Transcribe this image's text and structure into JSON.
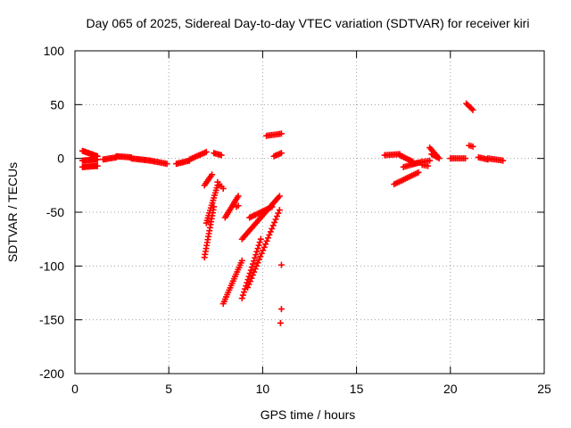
{
  "chart_data": {
    "type": "scatter",
    "title": "Day 065 of 2025, Sidereal Day-to-day VTEC variation (SDTVAR) for receiver kiri",
    "xlabel": "GPS time / hours",
    "ylabel": "SDTVAR / TECUs",
    "xlim": [
      0,
      25
    ],
    "ylim": [
      -200,
      100
    ],
    "xticks": [
      0,
      5,
      10,
      15,
      20,
      25
    ],
    "yticks": [
      -200,
      -150,
      -100,
      -50,
      0,
      50,
      100
    ],
    "xtick_labels": [
      "0",
      "5",
      "10",
      "15",
      "20",
      "25"
    ],
    "ytick_labels": [
      "-200",
      "-150",
      "-100",
      "-50",
      "0",
      "50",
      "100"
    ],
    "grid": true,
    "marker": "+",
    "point_color": "#ff0000",
    "segments": [
      {
        "x": [
          0.4,
          1.2
        ],
        "y": [
          7,
          2
        ],
        "n": 14
      },
      {
        "x": [
          0.4,
          1.2
        ],
        "y": [
          -2,
          -1
        ],
        "n": 14
      },
      {
        "x": [
          0.4,
          1.2
        ],
        "y": [
          -8,
          -7
        ],
        "n": 14
      },
      {
        "x": [
          1.5,
          2.2
        ],
        "y": [
          -1,
          1
        ],
        "n": 10
      },
      {
        "x": [
          2.2,
          3.0
        ],
        "y": [
          2,
          1
        ],
        "n": 12
      },
      {
        "x": [
          3.0,
          4.0
        ],
        "y": [
          0,
          -2
        ],
        "n": 14
      },
      {
        "x": [
          4.0,
          4.9
        ],
        "y": [
          -2,
          -5
        ],
        "n": 12
      },
      {
        "x": [
          5.4,
          6.1
        ],
        "y": [
          -5,
          -2
        ],
        "n": 10
      },
      {
        "x": [
          6.1,
          7.0
        ],
        "y": [
          -1,
          6
        ],
        "n": 12
      },
      {
        "x": [
          7.4,
          7.8
        ],
        "y": [
          5,
          3
        ],
        "n": 6
      },
      {
        "x": [
          6.9,
          7.3
        ],
        "y": [
          -25,
          -15
        ],
        "n": 7
      },
      {
        "x": [
          6.9,
          7.4
        ],
        "y": [
          -92,
          -45
        ],
        "n": 18
      },
      {
        "x": [
          7.0,
          7.6
        ],
        "y": [
          -60,
          -25
        ],
        "n": 16
      },
      {
        "x": [
          7.6,
          7.9
        ],
        "y": [
          -22,
          -28
        ],
        "n": 4
      },
      {
        "x": [
          8.0,
          8.7
        ],
        "y": [
          -55,
          -35
        ],
        "n": 14
      },
      {
        "x": [
          8.6,
          8.7
        ],
        "y": [
          -45,
          -44
        ],
        "n": 2
      },
      {
        "x": [
          7.9,
          8.9
        ],
        "y": [
          -135,
          -95
        ],
        "n": 20
      },
      {
        "x": [
          8.9,
          9.9
        ],
        "y": [
          -130,
          -75
        ],
        "n": 20
      },
      {
        "x": [
          8.9,
          10.9
        ],
        "y": [
          -75,
          -35
        ],
        "n": 28
      },
      {
        "x": [
          9.3,
          10.5
        ],
        "y": [
          -55,
          -45
        ],
        "n": 16
      },
      {
        "x": [
          9.2,
          10.9
        ],
        "y": [
          -120,
          -48
        ],
        "n": 26
      },
      {
        "x": [
          10.2,
          11.0
        ],
        "y": [
          21,
          23
        ],
        "n": 10
      },
      {
        "x": [
          10.6,
          11.0
        ],
        "y": [
          2,
          5
        ],
        "n": 6
      },
      {
        "x": [
          11.0,
          11.0
        ],
        "y": [
          -99,
          -99
        ],
        "n": 1
      },
      {
        "x": [
          11.0,
          11.0
        ],
        "y": [
          -140,
          -140
        ],
        "n": 1
      },
      {
        "x": [
          10.95,
          10.95
        ],
        "y": [
          -153,
          -153
        ],
        "n": 1
      },
      {
        "x": [
          16.5,
          17.3
        ],
        "y": [
          3,
          4
        ],
        "n": 10
      },
      {
        "x": [
          17.3,
          18.0
        ],
        "y": [
          3,
          -3
        ],
        "n": 10
      },
      {
        "x": [
          17.0,
          18.3
        ],
        "y": [
          -24,
          -13
        ],
        "n": 16
      },
      {
        "x": [
          17.5,
          18.5
        ],
        "y": [
          -8,
          -3
        ],
        "n": 12
      },
      {
        "x": [
          18.0,
          18.9
        ],
        "y": [
          -5,
          -2
        ],
        "n": 10
      },
      {
        "x": [
          18.9,
          19.4
        ],
        "y": [
          10,
          0
        ],
        "n": 8
      },
      {
        "x": [
          19.0,
          19.3
        ],
        "y": [
          4,
          1
        ],
        "n": 5
      },
      {
        "x": [
          18.5,
          18.8
        ],
        "y": [
          -6,
          -7
        ],
        "n": 4
      },
      {
        "x": [
          20.0,
          20.8
        ],
        "y": [
          0,
          0
        ],
        "n": 10
      },
      {
        "x": [
          20.85,
          21.2
        ],
        "y": [
          51,
          45
        ],
        "n": 6
      },
      {
        "x": [
          21.0,
          21.2
        ],
        "y": [
          12,
          11
        ],
        "n": 3
      },
      {
        "x": [
          21.5,
          22.0
        ],
        "y": [
          1,
          -1
        ],
        "n": 7
      },
      {
        "x": [
          22.0,
          22.8
        ],
        "y": [
          0,
          -2
        ],
        "n": 10
      }
    ]
  }
}
